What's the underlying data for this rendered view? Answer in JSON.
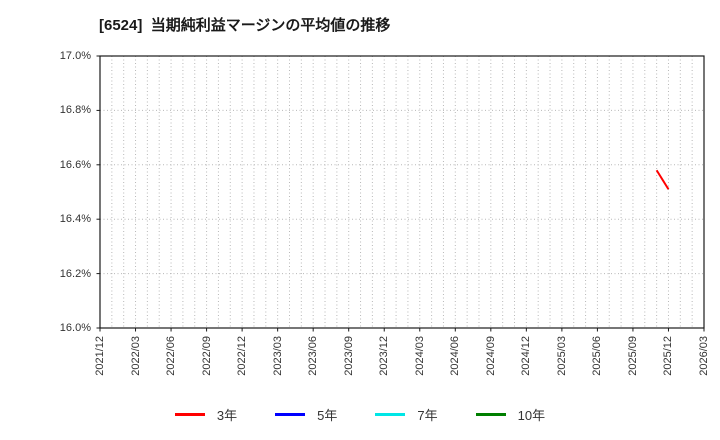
{
  "chart_data": {
    "type": "line",
    "title": "[6524]  当期純利益マージンの平均値の推移",
    "xlabel": "",
    "ylabel": "",
    "ylim": [
      16.0,
      17.0
    ],
    "y_ticks": [
      {
        "label": "17.0%",
        "value": 17.0
      },
      {
        "label": "16.8%",
        "value": 16.8
      },
      {
        "label": "16.6%",
        "value": 16.6
      },
      {
        "label": "16.4%",
        "value": 16.4
      },
      {
        "label": "16.2%",
        "value": 16.2
      },
      {
        "label": "16.0%",
        "value": 16.0
      }
    ],
    "x_range_months": 51,
    "x_ticks": [
      {
        "label": "2021/12",
        "month": 0
      },
      {
        "label": "2022/03",
        "month": 3
      },
      {
        "label": "2022/06",
        "month": 6
      },
      {
        "label": "2022/09",
        "month": 9
      },
      {
        "label": "2022/12",
        "month": 12
      },
      {
        "label": "2023/03",
        "month": 15
      },
      {
        "label": "2023/06",
        "month": 18
      },
      {
        "label": "2023/09",
        "month": 21
      },
      {
        "label": "2023/12",
        "month": 24
      },
      {
        "label": "2024/03",
        "month": 27
      },
      {
        "label": "2024/06",
        "month": 30
      },
      {
        "label": "2024/09",
        "month": 33
      },
      {
        "label": "2024/12",
        "month": 36
      },
      {
        "label": "2025/03",
        "month": 39
      },
      {
        "label": "2025/06",
        "month": 42
      },
      {
        "label": "2025/09",
        "month": 45
      },
      {
        "label": "2025/12",
        "month": 48
      },
      {
        "label": "2026/03",
        "month": 51
      }
    ],
    "grid": {
      "show": true,
      "style": "dotted",
      "color": "#b8b8b8",
      "vertical_interval_months": 1,
      "horizontal_interval_pct": 0.2
    },
    "legend_position": "bottom-center",
    "series": [
      {
        "name": "3年",
        "color": "#ff0000",
        "points": [
          {
            "date": "2025/11",
            "month": 47,
            "value": 16.58
          },
          {
            "date": "2025/12",
            "month": 48,
            "value": 16.51
          }
        ]
      },
      {
        "name": "5年",
        "color": "#0000ff",
        "points": []
      },
      {
        "name": "7年",
        "color": "#00e6e6",
        "points": []
      },
      {
        "name": "10年",
        "color": "#007f00",
        "points": []
      }
    ],
    "colors": {
      "plot_border": "#1a1a1a",
      "tick_text": "#333333",
      "title_text": "#1a1a1a",
      "background": "#ffffff"
    }
  }
}
